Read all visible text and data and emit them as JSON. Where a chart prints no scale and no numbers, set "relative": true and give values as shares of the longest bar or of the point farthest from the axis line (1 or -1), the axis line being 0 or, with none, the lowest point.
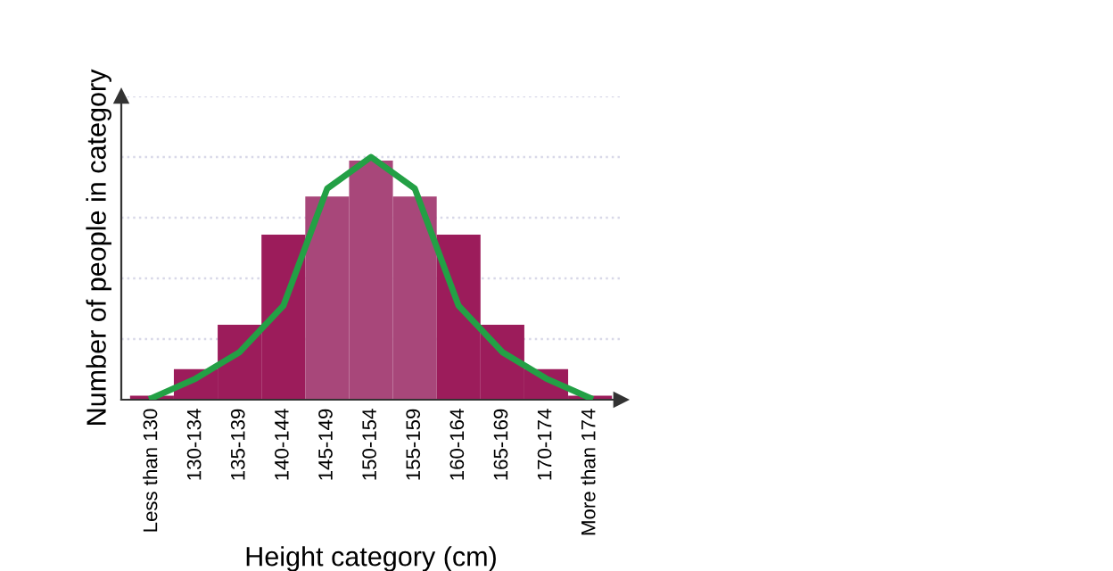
{
  "chart_data": {
    "type": "bar",
    "relative": true,
    "xlabel": "Height category (cm)",
    "ylabel": "Number of people in category",
    "categories": [
      "Less than 130",
      "130-134",
      "135-139",
      "140-144",
      "145-149",
      "150-154",
      "155-159",
      "160-164",
      "165-169",
      "170-174",
      "More than 174"
    ],
    "series": [
      {
        "colors": [
          "#9c1c5b",
          "#9c1c5b",
          "#9c1c5b",
          "#9c1c5b",
          "#a8477a",
          "#a8477a",
          "#a8477a",
          "#9c1c5b",
          "#9c1c5b",
          "#9c1c5b",
          "#9c1c5b"
        ],
        "values": [
          0.017,
          0.126,
          0.309,
          0.68,
          0.837,
          0.985,
          0.837,
          0.68,
          0.309,
          0.126,
          0.017
        ]
      },
      {
        "type": "line",
        "color": "#23a045",
        "values": [
          0.007,
          0.087,
          0.196,
          0.387,
          0.87,
          1,
          0.87,
          0.387,
          0.196,
          0.087,
          0.007
        ]
      }
    ],
    "grid": "y",
    "legend": false
  }
}
